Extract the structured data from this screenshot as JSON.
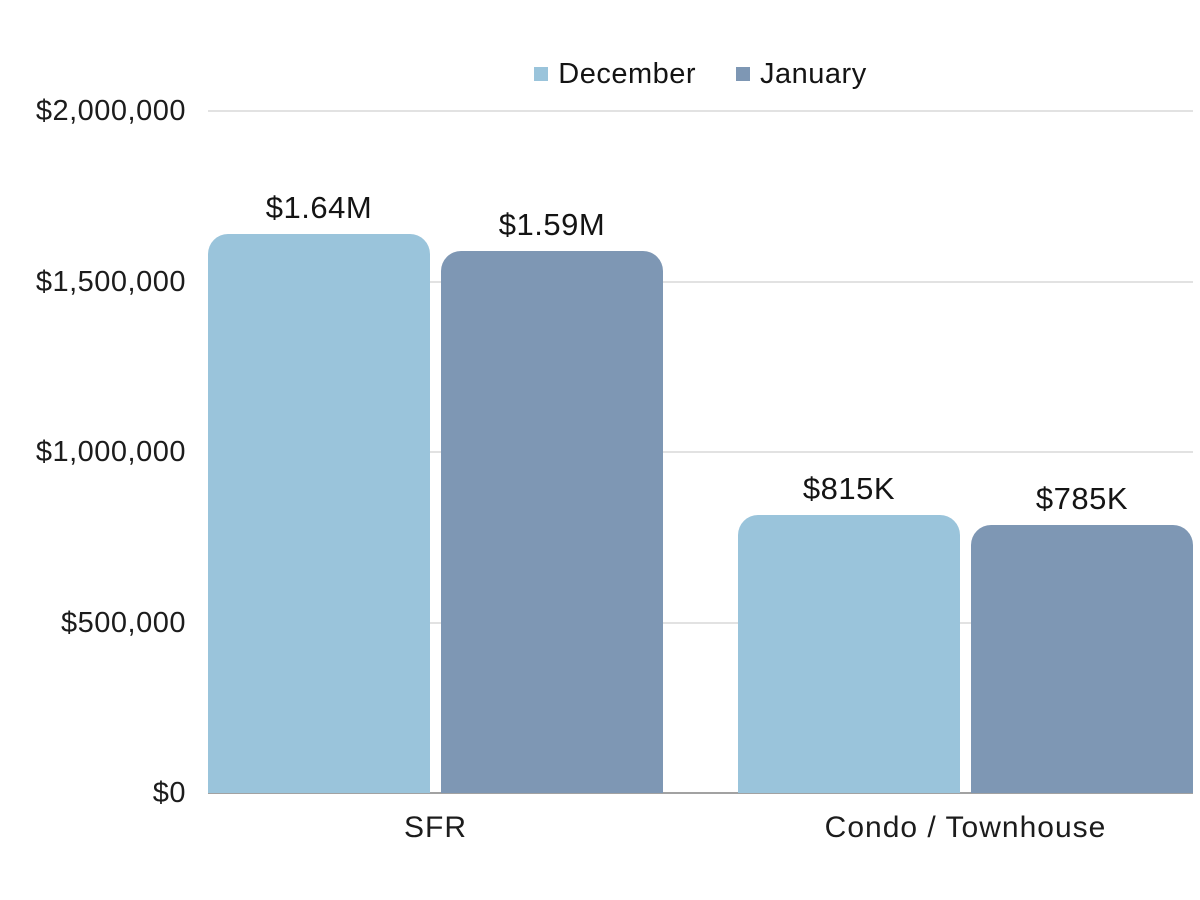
{
  "chart_data": {
    "type": "bar",
    "title": "",
    "categories": [
      "SFR",
      "Condo / Townhouse"
    ],
    "series": [
      {
        "name": "December",
        "color": "#9ac4db",
        "values": [
          1640000,
          815000
        ],
        "labels": [
          "$1.64M",
          "$815K"
        ]
      },
      {
        "name": "January",
        "color": "#7e97b4",
        "values": [
          1590000,
          785000
        ],
        "labels": [
          "$1.59M",
          "$785K"
        ]
      }
    ],
    "y_axis": {
      "ylim": [
        0,
        2000000
      ],
      "ticks": [
        {
          "value": 2000000,
          "label": "$2,000,000"
        },
        {
          "value": 1500000,
          "label": "$1,500,000"
        },
        {
          "value": 1000000,
          "label": "$1,000,000"
        },
        {
          "value": 500000,
          "label": "$500,000"
        },
        {
          "value": 0,
          "label": "$0"
        }
      ]
    },
    "xlabel": "",
    "ylabel": "",
    "legend_position": "top-center",
    "grid": "horizontal",
    "colors": {
      "background": "#ffffff",
      "gridline": "#e2e2e2",
      "axis_line": "#a2a2a2",
      "text": "#1c1c1c"
    }
  }
}
